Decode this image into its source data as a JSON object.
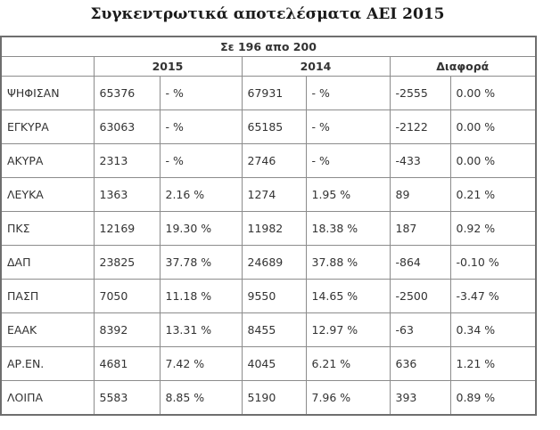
{
  "title": "Συγκεντρωτικά αποτελέσματα ΑΕΙ 2015",
  "table": {
    "caption": "Σε 196 απο 200",
    "years": [
      "2015",
      "2014",
      "Διαφορά"
    ],
    "rows": [
      {
        "label": "ΨΗΦΙΣΑΝ",
        "v2015": "65376",
        "p2015": "- %",
        "v2014": "67931",
        "p2014": "- %",
        "dv": "-2555",
        "dp": "0.00 %"
      },
      {
        "label": "ΕΓΚΥΡΑ",
        "v2015": "63063",
        "p2015": "- %",
        "v2014": "65185",
        "p2014": "- %",
        "dv": "-2122",
        "dp": "0.00 %"
      },
      {
        "label": "ΑΚΥΡΑ",
        "v2015": "2313",
        "p2015": "- %",
        "v2014": "2746",
        "p2014": "- %",
        "dv": "-433",
        "dp": "0.00 %"
      },
      {
        "label": "ΛΕΥΚΑ",
        "v2015": "1363",
        "p2015": "2.16 %",
        "v2014": "1274",
        "p2014": "1.95 %",
        "dv": "89",
        "dp": "0.21 %"
      },
      {
        "label": "ΠΚΣ",
        "v2015": "12169",
        "p2015": "19.30 %",
        "v2014": "11982",
        "p2014": "18.38 %",
        "dv": "187",
        "dp": "0.92 %"
      },
      {
        "label": "ΔΑΠ",
        "v2015": "23825",
        "p2015": "37.78 %",
        "v2014": "24689",
        "p2014": "37.88 %",
        "dv": "-864",
        "dp": "-0.10 %"
      },
      {
        "label": "ΠΑΣΠ",
        "v2015": "7050",
        "p2015": "11.18 %",
        "v2014": "9550",
        "p2014": "14.65 %",
        "dv": "-2500",
        "dp": "-3.47 %"
      },
      {
        "label": "ΕΑΑΚ",
        "v2015": "8392",
        "p2015": "13.31 %",
        "v2014": "8455",
        "p2014": "12.97 %",
        "dv": "-63",
        "dp": "0.34 %"
      },
      {
        "label": "ΑΡ.ΕΝ.",
        "v2015": "4681",
        "p2015": "7.42 %",
        "v2014": "4045",
        "p2014": "6.21 %",
        "dv": "636",
        "dp": "1.21 %"
      },
      {
        "label": "ΛΟΙΠΑ",
        "v2015": "5583",
        "p2015": "8.85 %",
        "v2014": "5190",
        "p2014": "7.96 %",
        "dv": "393",
        "dp": "0.89 %"
      }
    ]
  }
}
